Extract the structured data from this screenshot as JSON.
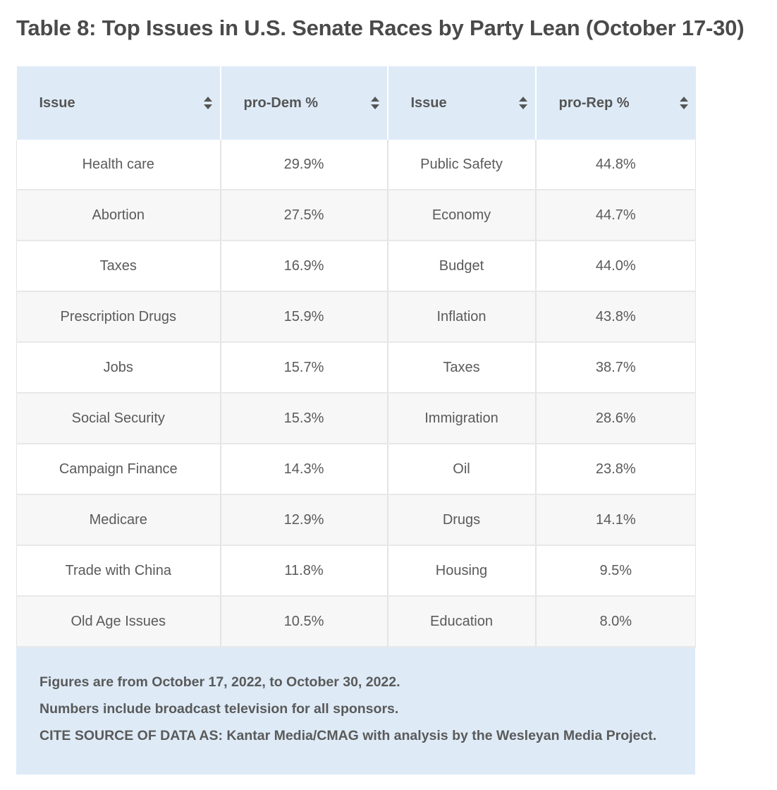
{
  "title": "Table 8: Top Issues in U.S. Senate Races by Party Lean (October 17-30)",
  "table": {
    "headers": [
      "Issue",
      "pro-Dem %",
      "Issue",
      "pro-Rep %"
    ],
    "rows": [
      [
        "Health care",
        "29.9%",
        "Public Safety",
        "44.8%"
      ],
      [
        "Abortion",
        "27.5%",
        "Economy",
        "44.7%"
      ],
      [
        "Taxes",
        "16.9%",
        "Budget",
        "44.0%"
      ],
      [
        "Prescription Drugs",
        "15.9%",
        "Inflation",
        "43.8%"
      ],
      [
        "Jobs",
        "15.7%",
        "Taxes",
        "38.7%"
      ],
      [
        "Social Security",
        "15.3%",
        "Immigration",
        "28.6%"
      ],
      [
        "Campaign Finance",
        "14.3%",
        "Oil",
        "23.8%"
      ],
      [
        "Medicare",
        "12.9%",
        "Drugs",
        "14.1%"
      ],
      [
        "Trade with China",
        "11.8%",
        "Housing",
        "9.5%"
      ],
      [
        "Old Age Issues",
        "10.5%",
        "Education",
        "8.0%"
      ]
    ]
  },
  "footnotes": [
    "Figures are from October 17, 2022, to October 30, 2022.",
    "Numbers include broadcast television for all sponsors.",
    "CITE SOURCE OF DATA AS: Kantar Media/CMAG with analysis by the Wesleyan Media Project."
  ],
  "colors": {
    "header_bg": "#deebf7",
    "stripe_bg": "#f7f7f7",
    "text": "#555555"
  },
  "icons": {
    "sort": "sort-updown-icon"
  }
}
